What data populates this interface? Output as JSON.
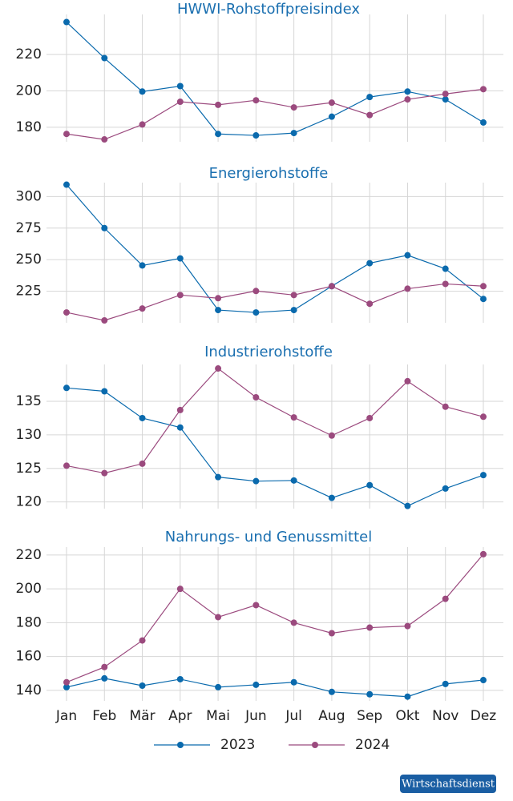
{
  "chart_data": [
    {
      "type": "line",
      "title": "HWWI-Rohstoffpreisindex",
      "ylim": [
        172,
        242
      ],
      "yticks": [
        180,
        200,
        220
      ],
      "grid": true,
      "series": [
        {
          "color": "#0a6aad",
          "values": [
            237.8,
            218,
            199.6,
            202.6,
            176.3,
            175.5,
            176.8,
            185.8,
            196.6,
            199.6,
            195.3,
            182.6
          ]
        },
        {
          "color": "#9b4a7e",
          "values": [
            176.3,
            173.3,
            181.5,
            194,
            192.3,
            194.8,
            190.9,
            193.5,
            186.7,
            195.3,
            198.3,
            200.9
          ]
        }
      ]
    },
    {
      "type": "line",
      "title": "Energierohstoffe",
      "ylim": [
        200,
        311
      ],
      "yticks": [
        225,
        250,
        275,
        300
      ],
      "grid": true,
      "series": [
        {
          "color": "#0a6aad",
          "values": [
            309.4,
            275,
            245.4,
            251,
            210.1,
            208.2,
            210.1,
            229,
            247.2,
            253.5,
            242.8,
            218.9
          ]
        },
        {
          "color": "#9b4a7e",
          "values": [
            208.2,
            201.9,
            211.3,
            222,
            219.5,
            225.2,
            222,
            229,
            215.1,
            227,
            230.8,
            229
          ]
        }
      ]
    },
    {
      "type": "line",
      "title": "Industrierohstoffe",
      "ylim": [
        119,
        140.5
      ],
      "yticks": [
        120,
        125,
        130,
        135
      ],
      "grid": true,
      "series": [
        {
          "color": "#0a6aad",
          "values": [
            137,
            136.5,
            132.5,
            131.1,
            123.7,
            123.1,
            123.2,
            120.6,
            122.5,
            119.4,
            122,
            124
          ]
        },
        {
          "color": "#9b4a7e",
          "values": [
            125.4,
            124.3,
            125.7,
            133.7,
            139.9,
            135.6,
            132.6,
            129.9,
            132.5,
            138,
            134.2,
            132.7
          ]
        }
      ]
    },
    {
      "type": "line",
      "title": "Nahrungs- und Genussmittel",
      "ylim": [
        133.8,
        224.7
      ],
      "yticks": [
        140,
        160,
        180,
        200,
        220
      ],
      "grid": true,
      "categories": [
        "Jan",
        "Feb",
        "Mär",
        "Apr",
        "Mai",
        "Jun",
        "Jul",
        "Aug",
        "Sep",
        "Okt",
        "Nov",
        "Dez"
      ],
      "series": [
        {
          "name": "2023",
          "color": "#0a6aad",
          "values": [
            141.9,
            147.1,
            142.8,
            146.6,
            141.9,
            143.3,
            144.8,
            139.1,
            137.7,
            136.3,
            143.8,
            146.1
          ]
        },
        {
          "name": "2024",
          "color": "#9b4a7e",
          "values": [
            144.8,
            153.8,
            169.5,
            200,
            183.3,
            190.4,
            180,
            173.8,
            177.1,
            178,
            194.1,
            220.5
          ]
        }
      ]
    }
  ],
  "badge": "Wirtschaftsdienst"
}
